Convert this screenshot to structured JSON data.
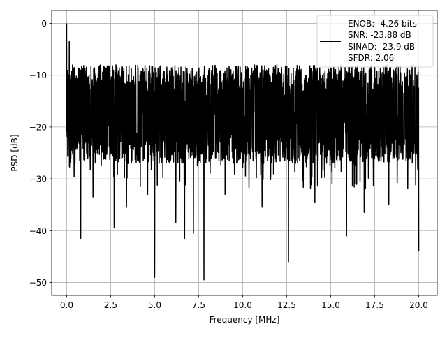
{
  "chart_data": {
    "type": "line",
    "xlabel": "Frequency [MHz]",
    "ylabel": "PSD [dB]",
    "xlim": [
      -0.85,
      21.05
    ],
    "ylim": [
      -52.5,
      2.5
    ],
    "xticks": [
      0.0,
      2.5,
      5.0,
      7.5,
      10.0,
      12.5,
      15.0,
      17.5,
      20.0
    ],
    "xtick_labels": [
      "0.0",
      "2.5",
      "5.0",
      "7.5",
      "10.0",
      "12.5",
      "15.0",
      "17.5",
      "20.0"
    ],
    "yticks": [
      0,
      -10,
      -20,
      -30,
      -40,
      -50
    ],
    "ytick_labels": [
      "0",
      "−10",
      "−20",
      "−30",
      "−40",
      "−50"
    ],
    "grid": true,
    "legend_position": "top-right",
    "legend": [
      "ENOB: -4.26 bits",
      "SNR: -23.88 dB",
      "SINAD: -23.9 dB",
      "SFDR: 2.06"
    ],
    "line_color": "#000000",
    "series": [
      {
        "noise_floor_range": [
          -30,
          -6
        ],
        "peaks": [
          {
            "x": 0.0,
            "y": 0.0
          },
          {
            "x": 0.05,
            "y": -11.5
          },
          {
            "x": 0.15,
            "y": -3.5
          }
        ],
        "dips": [
          {
            "x": 0.3,
            "y": -24.5
          },
          {
            "x": 0.8,
            "y": -41.5
          },
          {
            "x": 1.5,
            "y": -33.5
          },
          {
            "x": 2.7,
            "y": -39.5
          },
          {
            "x": 3.4,
            "y": -35.5
          },
          {
            "x": 4.6,
            "y": -33.0
          },
          {
            "x": 5.0,
            "y": -49.0
          },
          {
            "x": 6.2,
            "y": -38.5
          },
          {
            "x": 6.7,
            "y": -41.5
          },
          {
            "x": 7.2,
            "y": -40.5
          },
          {
            "x": 7.8,
            "y": -49.5
          },
          {
            "x": 9.0,
            "y": -33.0
          },
          {
            "x": 11.1,
            "y": -35.5
          },
          {
            "x": 12.6,
            "y": -46.0
          },
          {
            "x": 14.1,
            "y": -34.5
          },
          {
            "x": 15.9,
            "y": -41.0
          },
          {
            "x": 16.9,
            "y": -36.5
          },
          {
            "x": 18.3,
            "y": -35.0
          },
          {
            "x": 20.0,
            "y": -44.0
          }
        ]
      }
    ]
  }
}
